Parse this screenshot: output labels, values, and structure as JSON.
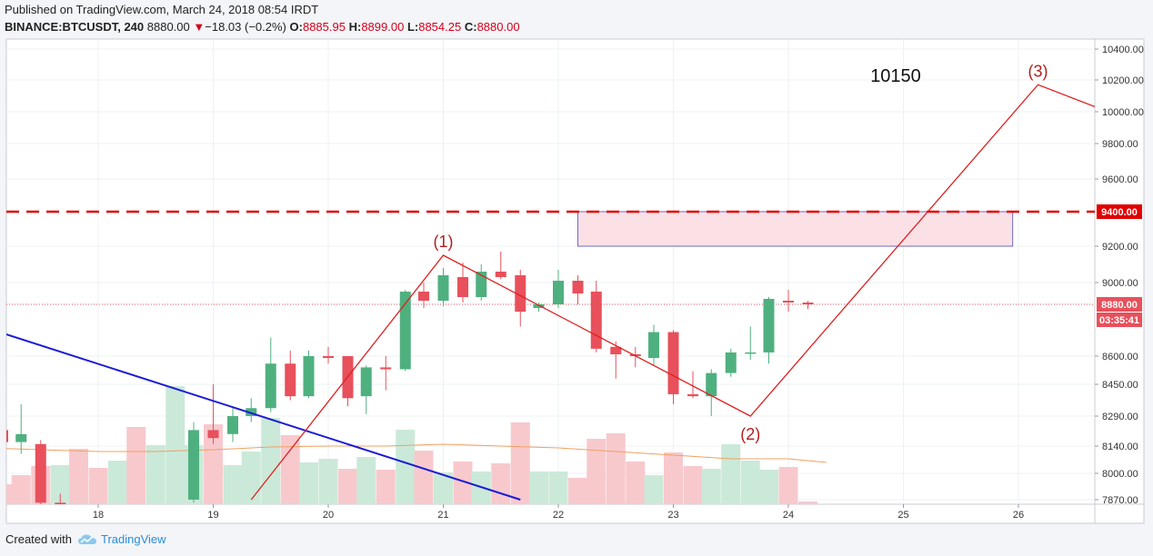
{
  "header": {
    "published": "Published on TradingView.com, March 24, 2018 08:54 IRDT",
    "symbol": "BINANCE:BTCUSDT, 240",
    "last": "8880.00",
    "change": "−18.03 (−0.2%)",
    "open_label": "O:",
    "open": "8885.95",
    "high_label": "H:",
    "high": "8899.00",
    "low_label": "L:",
    "low": "8854.25",
    "close_label": "C:",
    "close": "8880.00"
  },
  "footer": {
    "created_with": "Created with",
    "brand": "TradingView",
    "brand_icon": "tradingview-cloud-icon"
  },
  "colors": {
    "up": "#4fb07f",
    "down": "#e8505b",
    "vol_up": "#cbe9d9",
    "vol_down": "#f7c9cd",
    "trendline": "#1b1bd6",
    "wave": "#e02020",
    "resistance": "#e00000",
    "ma": "#f0a060"
  },
  "chart_data": {
    "type": "candlestick",
    "y_axis": {
      "ticks": [
        {
          "value": 10400,
          "label": "10400.00"
        },
        {
          "value": 10200,
          "label": "10200.00"
        },
        {
          "value": 10000,
          "label": "10000.00"
        },
        {
          "value": 9800,
          "label": "9800.00"
        },
        {
          "value": 9600,
          "label": "9600.00"
        },
        {
          "value": 9200,
          "label": "9200.00"
        },
        {
          "value": 9000,
          "label": "9000.00"
        },
        {
          "value": 8600,
          "label": "8600.00"
        },
        {
          "value": 8450,
          "label": "8450.00"
        },
        {
          "value": 8290,
          "label": "8290.00"
        },
        {
          "value": 8140,
          "label": "8140.00"
        },
        {
          "value": 8000,
          "label": "8000.00"
        },
        {
          "value": 7870,
          "label": "7870.00"
        }
      ]
    },
    "x_axis": {
      "ticks": [
        {
          "day": 18,
          "label": "18"
        },
        {
          "day": 19,
          "label": "19"
        },
        {
          "day": 20,
          "label": "20"
        },
        {
          "day": 21,
          "label": "21"
        },
        {
          "day": 22,
          "label": "22"
        },
        {
          "day": 23,
          "label": "23"
        },
        {
          "day": 24,
          "label": "24"
        },
        {
          "day": 25,
          "label": "25"
        },
        {
          "day": 26,
          "label": "26"
        }
      ]
    },
    "candles": [
      {
        "day": 17.17,
        "o": 8220,
        "h": 8290,
        "l": 8140,
        "c": 8160
      },
      {
        "day": 17.33,
        "o": 8160,
        "h": 8350,
        "l": 8100,
        "c": 8200
      },
      {
        "day": 17.5,
        "o": 8150,
        "h": 8170,
        "l": 7830,
        "c": 7855
      },
      {
        "day": 17.67,
        "o": 7855,
        "h": 7900,
        "l": 7820,
        "c": 7840
      },
      {
        "day": 18.83,
        "o": 7870,
        "h": 8260,
        "l": 7855,
        "c": 8220
      },
      {
        "day": 19.0,
        "o": 8220,
        "h": 8450,
        "l": 8150,
        "c": 8180
      },
      {
        "day": 19.17,
        "o": 8200,
        "h": 8330,
        "l": 8160,
        "c": 8290
      },
      {
        "day": 19.33,
        "o": 8290,
        "h": 8380,
        "l": 8260,
        "c": 8330
      },
      {
        "day": 19.5,
        "o": 8330,
        "h": 8700,
        "l": 8310,
        "c": 8560
      },
      {
        "day": 19.67,
        "o": 8560,
        "h": 8630,
        "l": 8370,
        "c": 8390
      },
      {
        "day": 19.83,
        "o": 8390,
        "h": 8630,
        "l": 8380,
        "c": 8600
      },
      {
        "day": 20.0,
        "o": 8600,
        "h": 8650,
        "l": 8560,
        "c": 8590
      },
      {
        "day": 20.17,
        "o": 8600,
        "h": 8600,
        "l": 8340,
        "c": 8380
      },
      {
        "day": 20.33,
        "o": 8390,
        "h": 8550,
        "l": 8300,
        "c": 8540
      },
      {
        "day": 20.5,
        "o": 8540,
        "h": 8600,
        "l": 8420,
        "c": 8530
      },
      {
        "day": 20.67,
        "o": 8530,
        "h": 8960,
        "l": 8520,
        "c": 8950
      },
      {
        "day": 20.83,
        "o": 8950,
        "h": 9000,
        "l": 8860,
        "c": 8900
      },
      {
        "day": 21.0,
        "o": 8900,
        "h": 9080,
        "l": 8870,
        "c": 9040
      },
      {
        "day": 21.17,
        "o": 9030,
        "h": 9110,
        "l": 8890,
        "c": 8920
      },
      {
        "day": 21.33,
        "o": 8920,
        "h": 9100,
        "l": 8900,
        "c": 9060
      },
      {
        "day": 21.5,
        "o": 9060,
        "h": 9170,
        "l": 9020,
        "c": 9030
      },
      {
        "day": 21.67,
        "o": 9040,
        "h": 9070,
        "l": 8760,
        "c": 8840
      },
      {
        "day": 21.83,
        "o": 8860,
        "h": 8890,
        "l": 8840,
        "c": 8880
      },
      {
        "day": 22.0,
        "o": 8880,
        "h": 9070,
        "l": 8860,
        "c": 9010
      },
      {
        "day": 22.17,
        "o": 9010,
        "h": 9040,
        "l": 8880,
        "c": 8940
      },
      {
        "day": 22.33,
        "o": 8950,
        "h": 9010,
        "l": 8620,
        "c": 8640
      },
      {
        "day": 22.5,
        "o": 8650,
        "h": 8680,
        "l": 8480,
        "c": 8610
      },
      {
        "day": 22.67,
        "o": 8610,
        "h": 8650,
        "l": 8540,
        "c": 8600
      },
      {
        "day": 22.83,
        "o": 8590,
        "h": 8770,
        "l": 8550,
        "c": 8730
      },
      {
        "day": 23.0,
        "o": 8730,
        "h": 8740,
        "l": 8350,
        "c": 8400
      },
      {
        "day": 23.17,
        "o": 8400,
        "h": 8520,
        "l": 8380,
        "c": 8390
      },
      {
        "day": 23.33,
        "o": 8390,
        "h": 8530,
        "l": 8290,
        "c": 8510
      },
      {
        "day": 23.5,
        "o": 8510,
        "h": 8640,
        "l": 8490,
        "c": 8620
      },
      {
        "day": 23.67,
        "o": 8620,
        "h": 8760,
        "l": 8580,
        "c": 8620
      },
      {
        "day": 23.83,
        "o": 8620,
        "h": 8920,
        "l": 8560,
        "c": 8910
      },
      {
        "day": 24.0,
        "o": 8900,
        "h": 8960,
        "l": 8840,
        "c": 8890
      },
      {
        "day": 24.17,
        "o": 8890,
        "h": 8899,
        "l": 8854,
        "c": 8880
      }
    ],
    "volumes": [
      {
        "day": 17.0,
        "v": 0.26,
        "up": false
      },
      {
        "day": 17.17,
        "v": 0.22,
        "up": false
      },
      {
        "day": 17.33,
        "v": 0.32,
        "up": false
      },
      {
        "day": 17.5,
        "v": 0.42,
        "up": false
      },
      {
        "day": 17.67,
        "v": 0.43,
        "up": true
      },
      {
        "day": 17.83,
        "v": 0.61,
        "up": false
      },
      {
        "day": 18.0,
        "v": 0.4,
        "up": false
      },
      {
        "day": 18.17,
        "v": 0.48,
        "up": true
      },
      {
        "day": 18.33,
        "v": 0.85,
        "up": false
      },
      {
        "day": 18.5,
        "v": 0.65,
        "up": true
      },
      {
        "day": 18.67,
        "v": 1.3,
        "up": true
      },
      {
        "day": 18.83,
        "v": 0.65,
        "up": true
      },
      {
        "day": 19.0,
        "v": 0.88,
        "up": false
      },
      {
        "day": 19.17,
        "v": 0.43,
        "up": true
      },
      {
        "day": 19.33,
        "v": 0.58,
        "up": true
      },
      {
        "day": 19.5,
        "v": 0.95,
        "up": true
      },
      {
        "day": 19.67,
        "v": 0.76,
        "up": false
      },
      {
        "day": 19.83,
        "v": 0.46,
        "up": true
      },
      {
        "day": 20.0,
        "v": 0.5,
        "up": true
      },
      {
        "day": 20.17,
        "v": 0.39,
        "up": false
      },
      {
        "day": 20.33,
        "v": 0.52,
        "up": true
      },
      {
        "day": 20.5,
        "v": 0.38,
        "up": false
      },
      {
        "day": 20.67,
        "v": 0.82,
        "up": true
      },
      {
        "day": 20.83,
        "v": 0.59,
        "up": false
      },
      {
        "day": 21.0,
        "v": 0.35,
        "up": true
      },
      {
        "day": 21.17,
        "v": 0.47,
        "up": false
      },
      {
        "day": 21.33,
        "v": 0.36,
        "up": true
      },
      {
        "day": 21.5,
        "v": 0.45,
        "up": false
      },
      {
        "day": 21.67,
        "v": 0.9,
        "up": false
      },
      {
        "day": 21.83,
        "v": 0.36,
        "up": true
      },
      {
        "day": 22.0,
        "v": 0.36,
        "up": true
      },
      {
        "day": 22.17,
        "v": 0.29,
        "up": false
      },
      {
        "day": 22.33,
        "v": 0.72,
        "up": false
      },
      {
        "day": 22.5,
        "v": 0.78,
        "up": false
      },
      {
        "day": 22.67,
        "v": 0.47,
        "up": false
      },
      {
        "day": 22.83,
        "v": 0.32,
        "up": true
      },
      {
        "day": 23.0,
        "v": 0.57,
        "up": false
      },
      {
        "day": 23.17,
        "v": 0.42,
        "up": false
      },
      {
        "day": 23.33,
        "v": 0.39,
        "up": true
      },
      {
        "day": 23.5,
        "v": 0.66,
        "up": true
      },
      {
        "day": 23.67,
        "v": 0.48,
        "up": true
      },
      {
        "day": 23.83,
        "v": 0.38,
        "up": true
      },
      {
        "day": 24.0,
        "v": 0.41,
        "up": false
      },
      {
        "day": 24.17,
        "v": 0.03,
        "up": false
      }
    ],
    "moving_average": [
      {
        "day": 17.0,
        "v": 0.62
      },
      {
        "day": 17.5,
        "v": 0.6
      },
      {
        "day": 18.0,
        "v": 0.58
      },
      {
        "day": 18.5,
        "v": 0.58
      },
      {
        "day": 19.0,
        "v": 0.6
      },
      {
        "day": 19.5,
        "v": 0.63
      },
      {
        "day": 20.0,
        "v": 0.64
      },
      {
        "day": 20.5,
        "v": 0.64
      },
      {
        "day": 21.0,
        "v": 0.66
      },
      {
        "day": 21.5,
        "v": 0.64
      },
      {
        "day": 22.0,
        "v": 0.62
      },
      {
        "day": 22.5,
        "v": 0.58
      },
      {
        "day": 23.0,
        "v": 0.54
      },
      {
        "day": 23.5,
        "v": 0.5
      },
      {
        "day": 24.0,
        "v": 0.5
      },
      {
        "day": 24.33,
        "v": 0.46
      }
    ],
    "trendline": [
      {
        "day": 16.99,
        "price": 8760
      },
      {
        "day": 21.67,
        "price": 7870
      }
    ],
    "wave_path": [
      {
        "day": 19.33,
        "price": 7870
      },
      {
        "day": 21.0,
        "price": 9150
      },
      {
        "day": 23.67,
        "price": 8290
      },
      {
        "day": 26.17,
        "price": 10170
      },
      {
        "day": 26.85,
        "price": 9980
      }
    ],
    "wave_labels": [
      {
        "text": "(1)",
        "day": 21.0,
        "price": 9150
      },
      {
        "text": "(2)",
        "day": 23.67,
        "price": 8290
      },
      {
        "text": "(3)",
        "day": 26.17,
        "price": 10170
      }
    ],
    "target_text": "10150",
    "resistance": {
      "price": 9400,
      "label": "9400.00"
    },
    "zone": {
      "day_from": 22.17,
      "day_to": 25.95,
      "price_top": 9400,
      "price_bottom": 9200
    },
    "last_price": {
      "price": 8880,
      "label": "8880.00",
      "countdown": "03:35:41"
    }
  }
}
